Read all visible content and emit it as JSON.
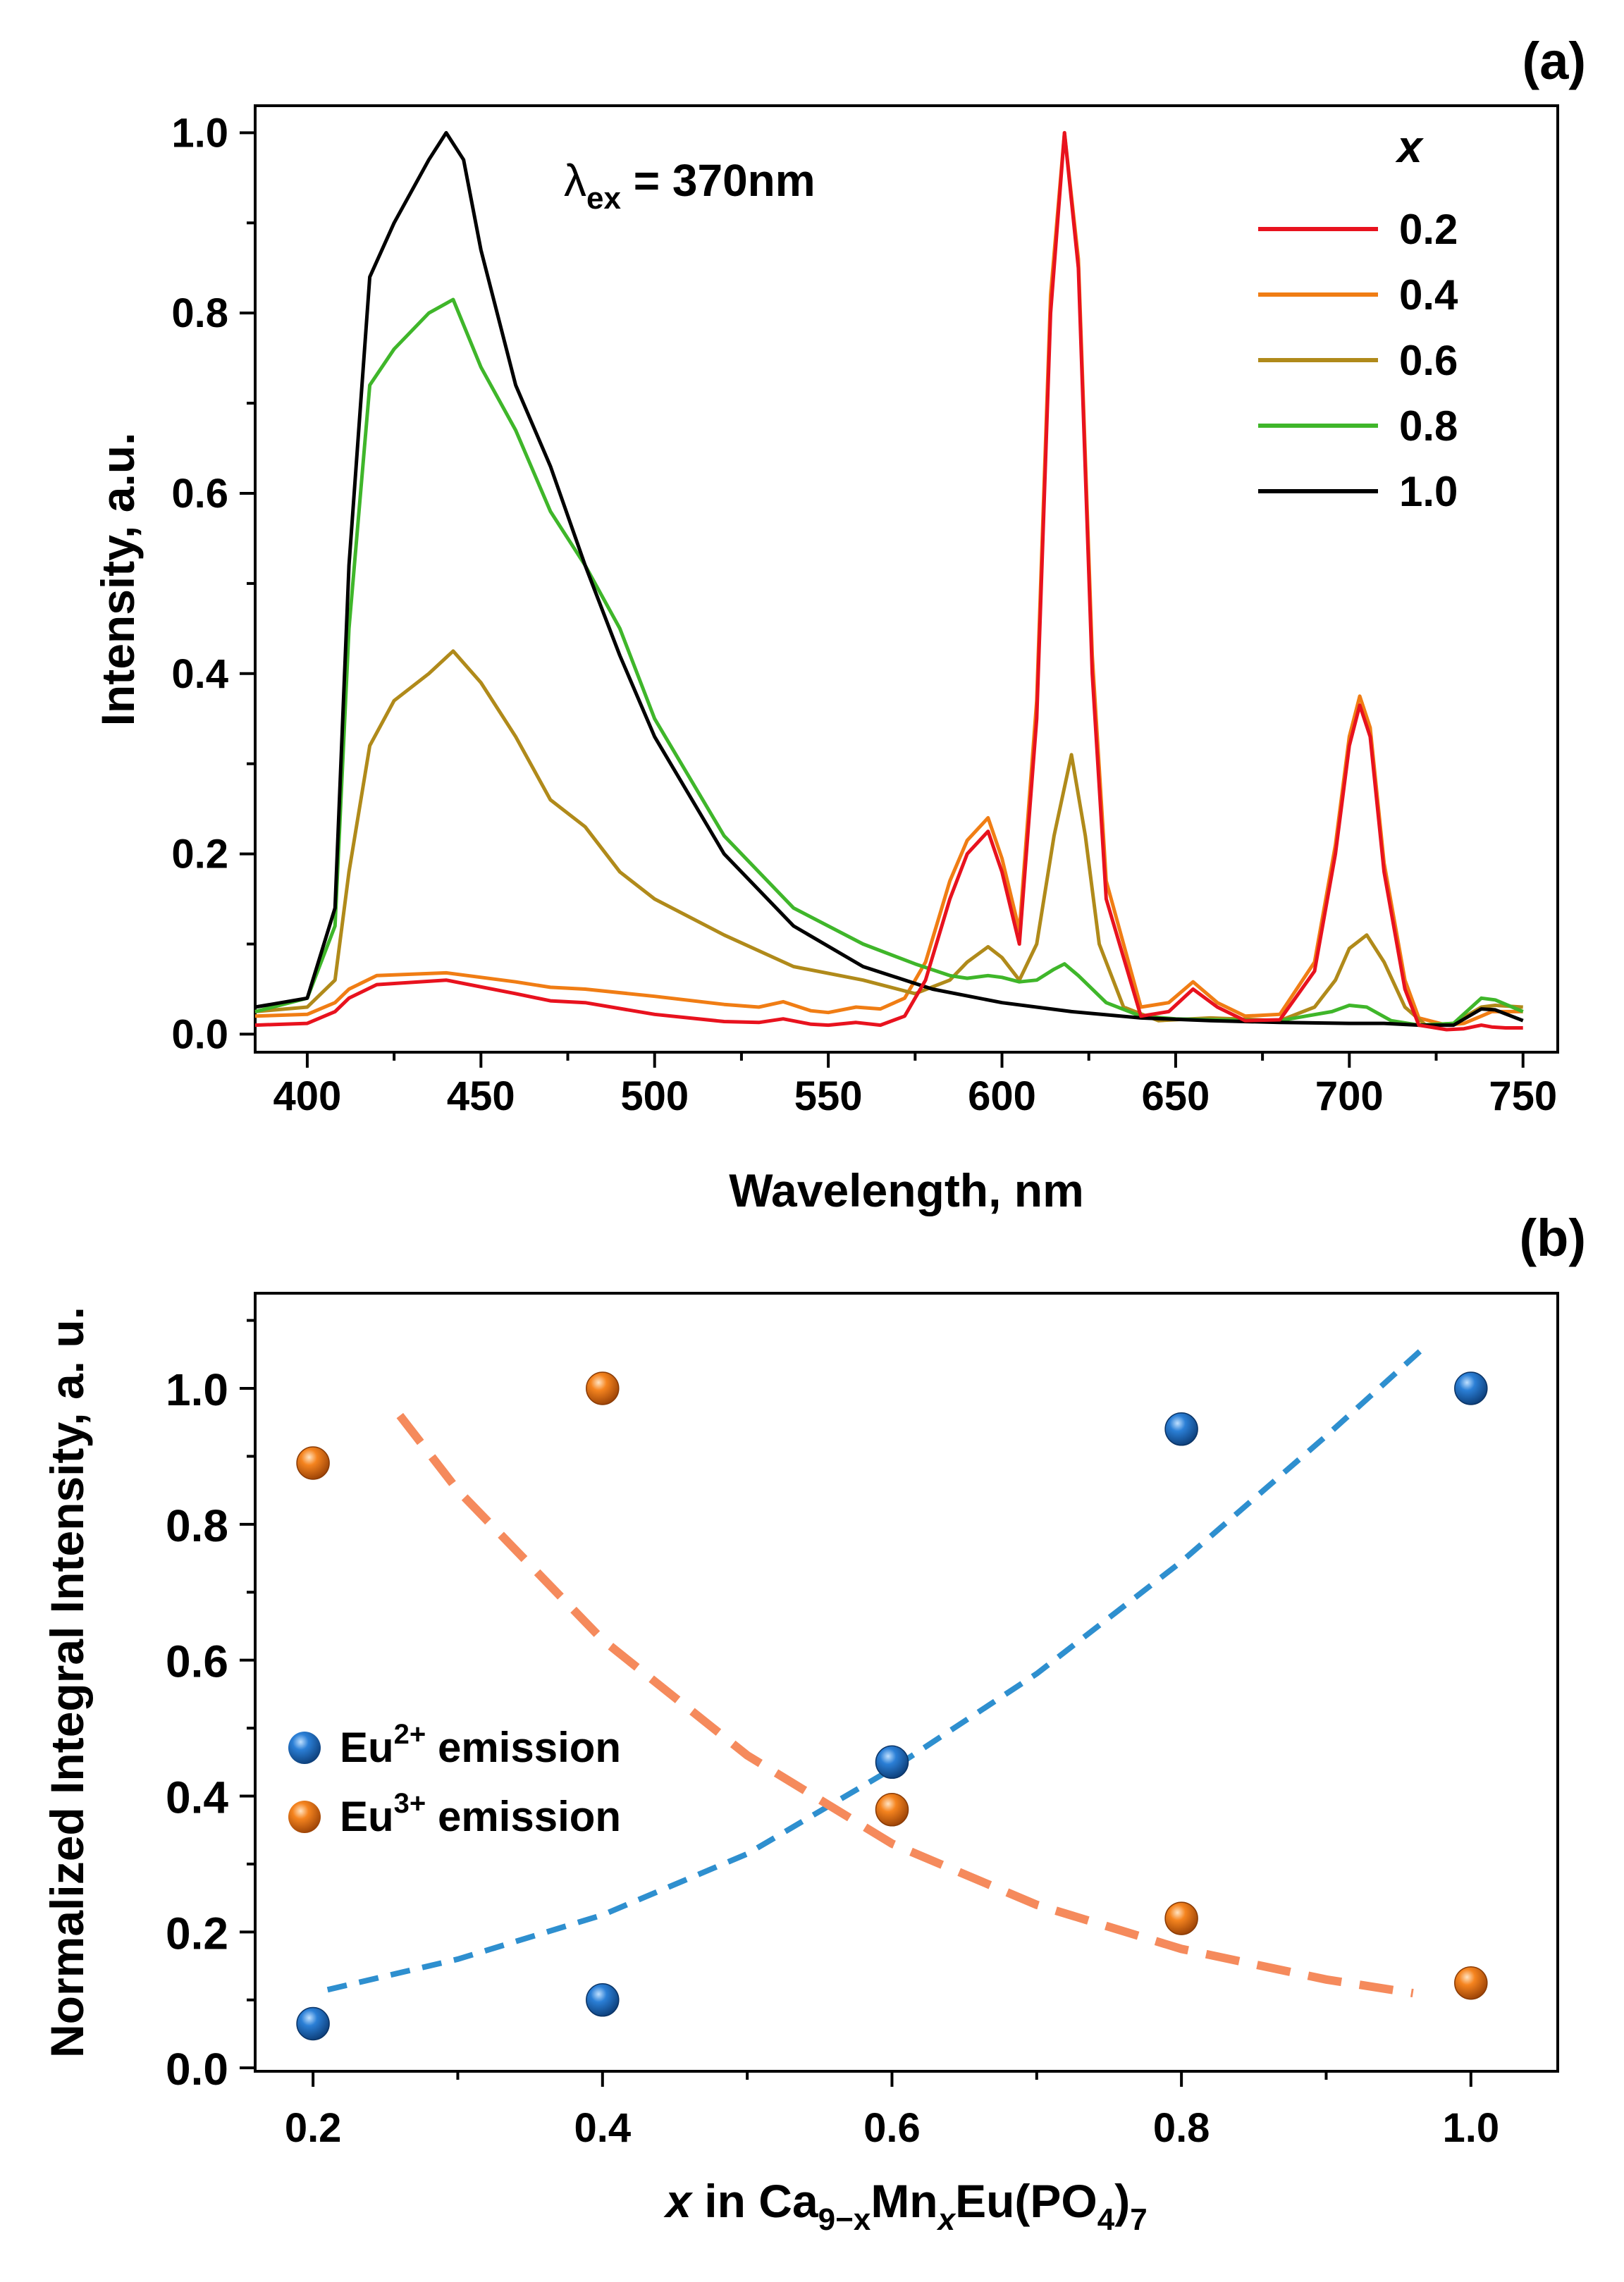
{
  "chart_data": [
    {
      "panel_label": "(a)",
      "type": "line",
      "xlabel": "Wavelength, nm",
      "ylabel": "Intensity, a.u.",
      "xlim": [
        385,
        760
      ],
      "ylim": [
        -0.02,
        1.03
      ],
      "xticks": [
        "400",
        "450",
        "500",
        "550",
        "600",
        "650",
        "700",
        "750"
      ],
      "yticks": [
        "0.0",
        "0.2",
        "0.4",
        "0.6",
        "0.8",
        "1.0"
      ],
      "annotation": {
        "symbol": "λ",
        "subscript": "ex",
        "text": " = 370nm"
      },
      "legend": {
        "title": "x",
        "placement": "top-right"
      },
      "series": [
        {
          "name": "0.2",
          "color": "#e8121e",
          "x": [
            385,
            400,
            408,
            412,
            420,
            440,
            460,
            470,
            480,
            500,
            520,
            530,
            537,
            545,
            550,
            558,
            565,
            572,
            578,
            585,
            590,
            596,
            600,
            605,
            610,
            614,
            618,
            622,
            626,
            630,
            640,
            648,
            655,
            662,
            670,
            680,
            690,
            696,
            700,
            703,
            706,
            710,
            716,
            720,
            728,
            733,
            738,
            741,
            745,
            750
          ],
          "values": [
            0.01,
            0.012,
            0.025,
            0.04,
            0.055,
            0.06,
            0.045,
            0.037,
            0.035,
            0.022,
            0.014,
            0.013,
            0.017,
            0.011,
            0.01,
            0.013,
            0.01,
            0.02,
            0.06,
            0.15,
            0.2,
            0.225,
            0.18,
            0.1,
            0.35,
            0.8,
            1.0,
            0.85,
            0.4,
            0.15,
            0.02,
            0.025,
            0.05,
            0.03,
            0.015,
            0.016,
            0.07,
            0.2,
            0.32,
            0.365,
            0.33,
            0.18,
            0.05,
            0.01,
            0.005,
            0.006,
            0.01,
            0.008,
            0.007,
            0.007
          ]
        },
        {
          "name": "0.4",
          "color": "#f07d14",
          "x": [
            385,
            400,
            408,
            412,
            420,
            440,
            460,
            470,
            480,
            500,
            520,
            530,
            537,
            545,
            550,
            558,
            565,
            572,
            578,
            585,
            590,
            596,
            600,
            605,
            610,
            614,
            618,
            622,
            626,
            630,
            640,
            648,
            655,
            662,
            670,
            680,
            690,
            696,
            700,
            703,
            706,
            710,
            716,
            720,
            728,
            733,
            738,
            741,
            745,
            750
          ],
          "values": [
            0.02,
            0.022,
            0.035,
            0.05,
            0.065,
            0.068,
            0.058,
            0.052,
            0.05,
            0.042,
            0.033,
            0.03,
            0.036,
            0.026,
            0.024,
            0.03,
            0.028,
            0.04,
            0.08,
            0.17,
            0.215,
            0.24,
            0.195,
            0.115,
            0.37,
            0.82,
            1.0,
            0.86,
            0.42,
            0.17,
            0.03,
            0.035,
            0.058,
            0.035,
            0.02,
            0.022,
            0.08,
            0.21,
            0.33,
            0.375,
            0.34,
            0.19,
            0.06,
            0.018,
            0.01,
            0.012,
            0.02,
            0.025,
            0.025,
            0.025
          ]
        },
        {
          "name": "0.6",
          "color": "#b08a1a",
          "x": [
            385,
            400,
            408,
            412,
            418,
            425,
            435,
            442,
            450,
            460,
            470,
            480,
            490,
            500,
            520,
            540,
            560,
            575,
            585,
            590,
            596,
            600,
            605,
            610,
            615,
            620,
            624,
            628,
            635,
            645,
            660,
            680,
            690,
            696,
            700,
            705,
            710,
            716,
            722,
            730,
            738,
            742,
            750
          ],
          "values": [
            0.025,
            0.03,
            0.06,
            0.18,
            0.32,
            0.37,
            0.4,
            0.425,
            0.39,
            0.33,
            0.26,
            0.23,
            0.18,
            0.15,
            0.11,
            0.075,
            0.06,
            0.045,
            0.06,
            0.08,
            0.097,
            0.085,
            0.06,
            0.1,
            0.22,
            0.31,
            0.22,
            0.1,
            0.03,
            0.015,
            0.018,
            0.015,
            0.03,
            0.06,
            0.095,
            0.11,
            0.08,
            0.03,
            0.01,
            0.012,
            0.03,
            0.032,
            0.03
          ]
        },
        {
          "name": "0.8",
          "color": "#3fb62a",
          "x": [
            385,
            400,
            408,
            412,
            418,
            425,
            435,
            442,
            450,
            460,
            470,
            480,
            490,
            500,
            520,
            540,
            560,
            575,
            585,
            590,
            596,
            600,
            605,
            610,
            615,
            618,
            622,
            630,
            640,
            650,
            660,
            680,
            695,
            700,
            705,
            712,
            720,
            730,
            738,
            742,
            750
          ],
          "values": [
            0.025,
            0.04,
            0.12,
            0.45,
            0.72,
            0.76,
            0.8,
            0.815,
            0.74,
            0.67,
            0.58,
            0.52,
            0.45,
            0.35,
            0.22,
            0.14,
            0.1,
            0.078,
            0.065,
            0.062,
            0.065,
            0.063,
            0.058,
            0.06,
            0.072,
            0.078,
            0.065,
            0.035,
            0.02,
            0.017,
            0.016,
            0.015,
            0.025,
            0.032,
            0.03,
            0.015,
            0.01,
            0.012,
            0.04,
            0.038,
            0.025
          ]
        },
        {
          "name": "1.0",
          "color": "#000000",
          "x": [
            385,
            400,
            408,
            412,
            418,
            425,
            435,
            440,
            445,
            450,
            460,
            470,
            480,
            490,
            500,
            520,
            540,
            560,
            580,
            600,
            620,
            640,
            660,
            680,
            700,
            710,
            720,
            730,
            738,
            742,
            750
          ],
          "values": [
            0.03,
            0.04,
            0.14,
            0.52,
            0.84,
            0.9,
            0.97,
            1.0,
            0.97,
            0.87,
            0.72,
            0.63,
            0.52,
            0.42,
            0.33,
            0.2,
            0.12,
            0.075,
            0.05,
            0.035,
            0.025,
            0.018,
            0.015,
            0.013,
            0.012,
            0.012,
            0.01,
            0.01,
            0.028,
            0.027,
            0.015
          ]
        }
      ]
    },
    {
      "panel_label": "(b)",
      "type": "scatter",
      "xlabel": {
        "italic_x": "x",
        "in": " in Ca",
        "sub1": "9−x",
        "mn": "Mn",
        "sub2": "x",
        "rest": "Eu(PO",
        "sub3": "4",
        "close": ")",
        "sub4": "7"
      },
      "ylabel": "Normalized Integral Intensity, a. u.",
      "xlim": [
        0.16,
        1.06
      ],
      "ylim": [
        -0.005,
        1.14
      ],
      "xticks": [
        "0.2",
        "0.4",
        "0.6",
        "0.8",
        "1.0"
      ],
      "yticks": [
        "0.0",
        "0.2",
        "0.4",
        "0.6",
        "0.8",
        "1.0"
      ],
      "legend": {
        "placement": "center-left"
      },
      "series": [
        {
          "name": "Eu",
          "sup": "2+",
          "suffix": " emission",
          "color": "#1a6cc0",
          "x": [
            0.2,
            0.4,
            0.6,
            0.8,
            1.0
          ],
          "values": [
            0.065,
            0.1,
            0.45,
            0.94,
            1.0
          ],
          "fit": {
            "color": "#2e8fcf",
            "x": [
              0.21,
              0.3,
              0.4,
              0.5,
              0.6,
              0.7,
              0.8,
              0.9,
              0.965
            ],
            "values": [
              0.115,
              0.16,
              0.225,
              0.315,
              0.44,
              0.58,
              0.745,
              0.93,
              1.055
            ]
          }
        },
        {
          "name": "Eu",
          "sup": "3+",
          "suffix": " emission",
          "color": "#f07a20",
          "x": [
            0.2,
            0.4,
            0.6,
            0.8,
            1.0
          ],
          "values": [
            0.89,
            1.0,
            0.38,
            0.22,
            0.125
          ],
          "fit": {
            "color": "#f58a5c",
            "x": [
              0.26,
              0.3,
              0.4,
              0.5,
              0.6,
              0.7,
              0.8,
              0.9,
              0.96
            ],
            "values": [
              0.96,
              0.85,
              0.63,
              0.46,
              0.33,
              0.24,
              0.175,
              0.13,
              0.11
            ]
          }
        }
      ]
    }
  ]
}
